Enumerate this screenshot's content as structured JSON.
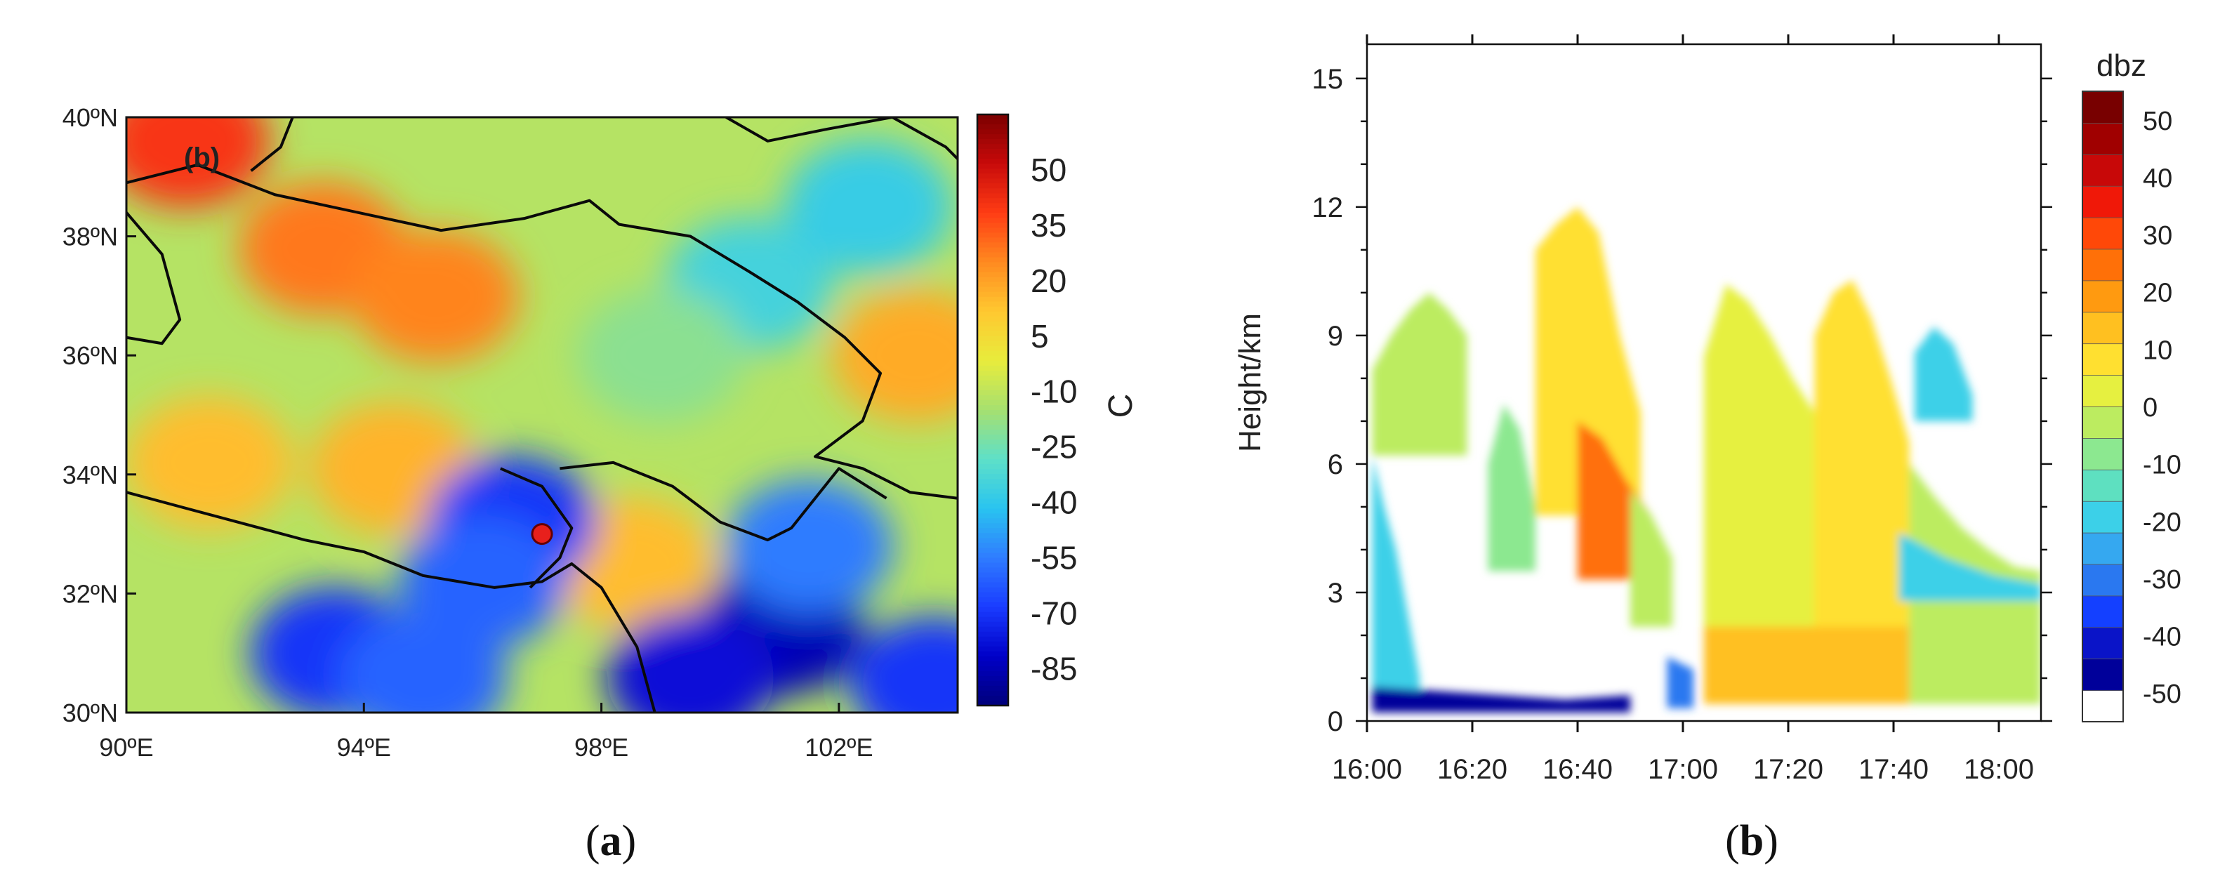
{
  "panels": {
    "a": {
      "caption_prefix": "(",
      "caption_letter": "a",
      "caption_suffix": ")"
    },
    "b": {
      "caption_prefix": "(",
      "caption_letter": "b",
      "caption_suffix": ")"
    }
  },
  "chart_data": [
    {
      "type": "heatmap",
      "panel": "a",
      "inset_label": "(b)",
      "x_tick_labels": [
        "90ºE",
        "94ºE",
        "98ºE",
        "102ºE"
      ],
      "x_ticks": [
        90,
        94,
        98,
        102
      ],
      "xlim": [
        90,
        104
      ],
      "y_tick_labels": [
        "30ºN",
        "32ºN",
        "34ºN",
        "36ºN",
        "38ºN",
        "40ºN"
      ],
      "y_ticks": [
        30,
        32,
        34,
        36,
        38,
        40
      ],
      "ylim": [
        30,
        40
      ],
      "colorbar": {
        "unit": "C",
        "tick_labels": [
          "50",
          "35",
          "20",
          "5",
          "-10",
          "-25",
          "-40",
          "-55",
          "-70",
          "-85"
        ],
        "levels": [
          50,
          35,
          20,
          5,
          -10,
          -25,
          -40,
          -55,
          -70,
          -85
        ],
        "range": [
          -95,
          65
        ],
        "colors": [
          "#00007a",
          "#0000c8",
          "#1a3cff",
          "#2f7cff",
          "#29c4f0",
          "#5ee0c8",
          "#a6e070",
          "#e8ec3c",
          "#ffc830",
          "#ff8a20",
          "#ff3c14",
          "#c80a0a",
          "#7a0000"
        ]
      },
      "marker": {
        "lon": 97,
        "lat": 33,
        "color": "#e8201c"
      },
      "blobs": [
        {
          "lon": 91.0,
          "lat": 39.6,
          "value": 40
        },
        {
          "lon": 93.3,
          "lat": 37.8,
          "value": 28
        },
        {
          "lon": 95.2,
          "lat": 37.0,
          "value": 26
        },
        {
          "lon": 91.4,
          "lat": 34.2,
          "value": 14
        },
        {
          "lon": 94.5,
          "lat": 34.1,
          "value": 16
        },
        {
          "lon": 98.5,
          "lat": 32.5,
          "value": 14
        },
        {
          "lon": 103.3,
          "lat": 36.0,
          "value": 18
        },
        {
          "lon": 100.5,
          "lat": 37.2,
          "value": -35
        },
        {
          "lon": 102.5,
          "lat": 38.5,
          "value": -38
        },
        {
          "lon": 99.0,
          "lat": 36.0,
          "value": -20
        },
        {
          "lon": 96.5,
          "lat": 33.2,
          "value": -70
        },
        {
          "lon": 96.0,
          "lat": 32.2,
          "value": -60
        },
        {
          "lon": 93.5,
          "lat": 31.0,
          "value": -70
        },
        {
          "lon": 95.0,
          "lat": 30.6,
          "value": -60
        },
        {
          "lon": 101.0,
          "lat": 31.4,
          "value": -85
        },
        {
          "lon": 99.5,
          "lat": 30.6,
          "value": -78
        },
        {
          "lon": 103.6,
          "lat": 30.5,
          "value": -70
        },
        {
          "lon": 101.5,
          "lat": 32.8,
          "value": -55
        }
      ],
      "boundaries": [
        [
          [
            90,
            38.9
          ],
          [
            91.2,
            39.2
          ],
          [
            92.5,
            38.7
          ],
          [
            93.9,
            38.4
          ],
          [
            95.3,
            38.1
          ],
          [
            96.7,
            38.3
          ],
          [
            97.8,
            38.6
          ],
          [
            98.3,
            38.2
          ],
          [
            99.5,
            38.0
          ],
          [
            100.5,
            37.4
          ],
          [
            101.3,
            36.9
          ],
          [
            102.1,
            36.3
          ],
          [
            102.7,
            35.7
          ],
          [
            102.4,
            34.9
          ],
          [
            101.6,
            34.3
          ],
          [
            102.4,
            34.1
          ],
          [
            103.2,
            33.7
          ],
          [
            104,
            33.6
          ]
        ],
        [
          [
            90,
            33.7
          ],
          [
            91.5,
            33.3
          ],
          [
            93.0,
            32.9
          ],
          [
            94.0,
            32.7
          ],
          [
            95.0,
            32.3
          ],
          [
            96.2,
            32.1
          ],
          [
            97.0,
            32.2
          ],
          [
            97.5,
            32.5
          ],
          [
            98.0,
            32.1
          ],
          [
            98.6,
            31.1
          ],
          [
            98.9,
            30
          ]
        ],
        [
          [
            96.3,
            34.1
          ],
          [
            97.0,
            33.8
          ],
          [
            97.5,
            33.1
          ],
          [
            97.3,
            32.6
          ],
          [
            96.8,
            32.1
          ]
        ],
        [
          [
            97.3,
            34.1
          ],
          [
            98.2,
            34.2
          ],
          [
            99.2,
            33.8
          ],
          [
            100.0,
            33.2
          ],
          [
            100.8,
            32.9
          ],
          [
            101.2,
            33.1
          ],
          [
            102.0,
            34.1
          ],
          [
            102.8,
            33.6
          ]
        ],
        [
          [
            92.8,
            40
          ],
          [
            92.6,
            39.5
          ],
          [
            92.1,
            39.1
          ]
        ],
        [
          [
            100.1,
            40
          ],
          [
            100.8,
            39.6
          ],
          [
            101.8,
            39.8
          ],
          [
            102.9,
            40
          ],
          [
            103.8,
            39.5
          ],
          [
            104,
            39.3
          ]
        ],
        [
          [
            90,
            38.4
          ],
          [
            90.6,
            37.7
          ],
          [
            90.9,
            36.6
          ],
          [
            90.6,
            36.2
          ],
          [
            90,
            36.3
          ]
        ]
      ]
    },
    {
      "type": "heatmap",
      "panel": "b",
      "ylabel": "Height/km",
      "y_tick_labels": [
        "0",
        "3",
        "6",
        "9",
        "12",
        "15"
      ],
      "y_ticks": [
        0,
        3,
        6,
        9,
        12,
        15
      ],
      "ylim": [
        0,
        15.8
      ],
      "x_tick_labels": [
        "16:00",
        "16:20",
        "16:40",
        "17:00",
        "17:20",
        "17:40",
        "18:00"
      ],
      "x_ticks": [
        0,
        20,
        40,
        60,
        80,
        100,
        120
      ],
      "xlim": [
        0,
        128
      ],
      "colorbar": {
        "title": "dbz",
        "tick_labels": [
          "50",
          "40",
          "30",
          "20",
          "10",
          "0",
          "-10",
          "-20",
          "-30",
          "-40",
          "-50"
        ],
        "levels": [
          50,
          40,
          30,
          20,
          10,
          0,
          -10,
          -20,
          -30,
          -40,
          -50
        ],
        "range": [
          -55,
          55
        ],
        "bins": [
          {
            "color": "#ffffff"
          },
          {
            "color": "#00009a"
          },
          {
            "color": "#0a14c8"
          },
          {
            "color": "#1440ff"
          },
          {
            "color": "#2a78f0"
          },
          {
            "color": "#35a8f0"
          },
          {
            "color": "#3cd0e8"
          },
          {
            "color": "#5ee0c0"
          },
          {
            "color": "#8ce890"
          },
          {
            "color": "#bcec60"
          },
          {
            "color": "#e6f040"
          },
          {
            "color": "#ffe030"
          },
          {
            "color": "#ffc020"
          },
          {
            "color": "#ff9a10"
          },
          {
            "color": "#ff7008"
          },
          {
            "color": "#ff4808"
          },
          {
            "color": "#f01808"
          },
          {
            "color": "#c80808"
          },
          {
            "color": "#a00000"
          },
          {
            "color": "#780000"
          }
        ]
      },
      "echoes": [
        {
          "t0": 1,
          "t1": 19,
          "top": [
            8.2,
            9.0,
            9.6,
            10.0,
            9.6,
            9.0
          ],
          "bottom": 6.2,
          "value": -5
        },
        {
          "t0": 1,
          "t1": 10,
          "top": [
            6.2,
            5.0,
            4.0,
            2.5,
            1.0
          ],
          "bottom": 0.4,
          "value": -22
        },
        {
          "t0": 23,
          "t1": 32,
          "top": [
            6.0,
            7.4,
            6.8,
            5.0
          ],
          "bottom": 3.5,
          "value": -8
        },
        {
          "t0": 32,
          "t1": 52,
          "top": [
            11.0,
            11.6,
            12.0,
            11.4,
            9.0,
            7.2
          ],
          "bottom": 4.8,
          "value": 8
        },
        {
          "t0": 40,
          "t1": 54,
          "top": [
            7.0,
            6.6,
            5.6,
            4.8
          ],
          "bottom": 3.3,
          "value": 25
        },
        {
          "t0": 50,
          "t1": 58,
          "top": [
            5.4,
            4.8,
            3.8
          ],
          "bottom": 2.2,
          "value": -2
        },
        {
          "t0": 64,
          "t1": 85,
          "top": [
            8.5,
            10.2,
            9.8,
            9.0,
            8.0,
            7.2
          ],
          "bottom": 0.4,
          "value": 2
        },
        {
          "t0": 85,
          "t1": 103,
          "top": [
            9.0,
            10.0,
            10.3,
            9.4,
            8.0,
            6.5
          ],
          "bottom": 0.4,
          "value": 6
        },
        {
          "t0": 103,
          "t1": 128,
          "top": [
            6.0,
            5.2,
            4.5,
            4.0,
            3.6,
            3.5
          ],
          "bottom": 0.4,
          "value": -5
        },
        {
          "t0": 64,
          "t1": 103,
          "top": [
            2.2,
            2.2,
            2.2,
            2.2
          ],
          "bottom": 0.4,
          "value": 14
        },
        {
          "t0": 104,
          "t1": 115,
          "top": [
            8.6,
            9.2,
            8.8,
            7.6
          ],
          "bottom": 7.0,
          "value": -22
        },
        {
          "t0": 101,
          "t1": 128,
          "top": [
            4.4,
            3.8,
            3.4,
            3.2
          ],
          "bottom": 2.8,
          "value": -20
        },
        {
          "t0": 1,
          "t1": 50,
          "top": [
            0.8,
            0.7,
            0.6,
            0.5,
            0.6
          ],
          "bottom": 0.2,
          "value": -45
        },
        {
          "t0": 57,
          "t1": 62,
          "top": [
            1.5,
            1.2
          ],
          "bottom": 0.3,
          "value": -30
        }
      ]
    }
  ]
}
